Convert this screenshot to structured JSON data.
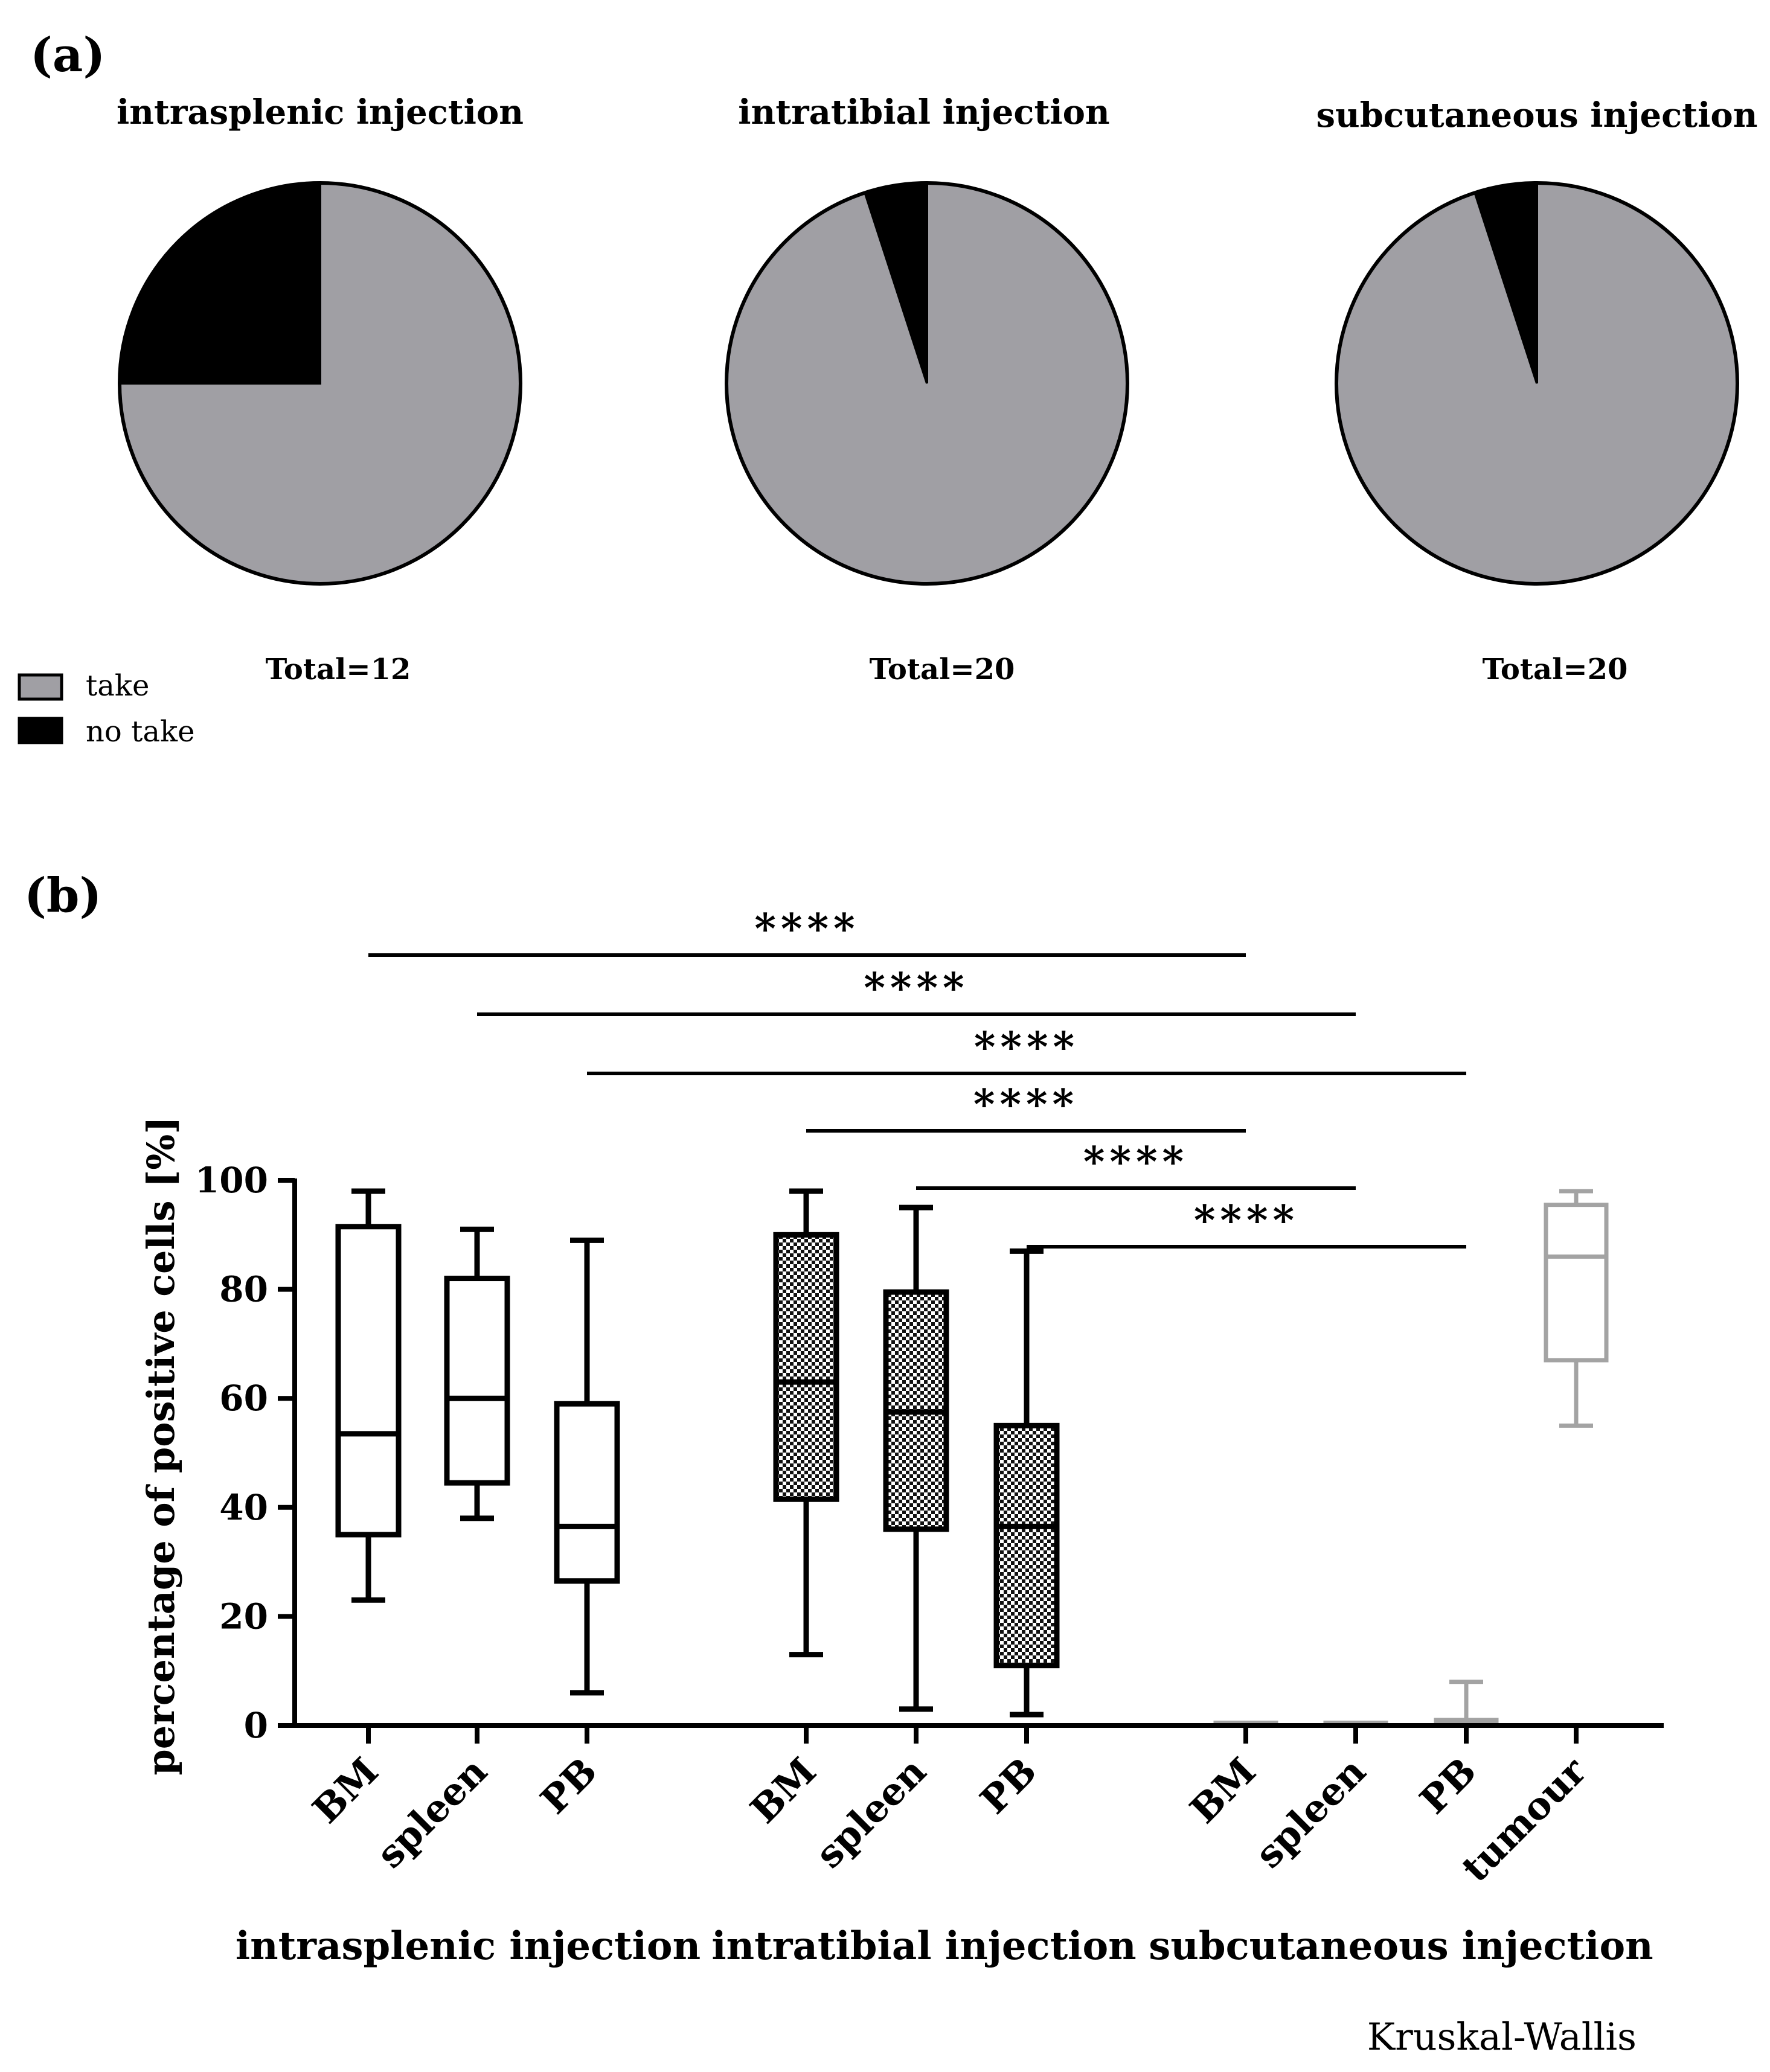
{
  "chart_data": [
    {
      "panel_label": "(a)",
      "type": "pie",
      "legend": [
        {
          "label": "take",
          "color": "#a09fa4"
        },
        {
          "label": "no take",
          "color": "#000000"
        }
      ],
      "charts": [
        {
          "title": "intrasplenic injection",
          "total_label": "Total=12",
          "total": 12,
          "take": 9,
          "no_take": 3
        },
        {
          "title": "intratibial injection",
          "total_label": "Total=20",
          "total": 20,
          "take": 19,
          "no_take": 1
        },
        {
          "title": "subcutaneous injection",
          "total_label": "Total=20",
          "total": 20,
          "take": 19,
          "no_take": 1
        }
      ]
    },
    {
      "panel_label": "(b)",
      "type": "box",
      "ylabel": "percentage of positive cells [%]",
      "ylim": [
        0,
        100
      ],
      "yticks": [
        0,
        20,
        40,
        60,
        80,
        100
      ],
      "groups": [
        {
          "label": "intrasplenic injection",
          "categories": [
            "BM",
            "spleen",
            "PB"
          ]
        },
        {
          "label": "intratibial injection",
          "categories": [
            "BM",
            "spleen",
            "PB"
          ]
        },
        {
          "label": "subcutaneous injection",
          "categories": [
            "BM",
            "spleen",
            "PB",
            "tumour"
          ]
        }
      ],
      "boxes": [
        {
          "group": 0,
          "category": "BM",
          "min": 23,
          "q1": 35,
          "median": 53.5,
          "q3": 91.5,
          "max": 98,
          "style": "open"
        },
        {
          "group": 0,
          "category": "spleen",
          "min": 38,
          "q1": 44.5,
          "median": 60,
          "q3": 82,
          "max": 91,
          "style": "open"
        },
        {
          "group": 0,
          "category": "PB",
          "min": 6,
          "q1": 26.5,
          "median": 36.5,
          "q3": 59,
          "max": 89,
          "style": "open"
        },
        {
          "group": 1,
          "category": "BM",
          "min": 13,
          "q1": 41.5,
          "median": 63,
          "q3": 90,
          "max": 98,
          "style": "checkered"
        },
        {
          "group": 1,
          "category": "spleen",
          "min": 3,
          "q1": 36,
          "median": 57.5,
          "q3": 79.5,
          "max": 95,
          "style": "checkered"
        },
        {
          "group": 1,
          "category": "PB",
          "min": 2,
          "q1": 11,
          "median": 36.5,
          "q3": 55,
          "max": 87,
          "style": "checkered"
        },
        {
          "group": 2,
          "category": "BM",
          "min": 0.5,
          "q1": 0.5,
          "median": 0.5,
          "q3": 0.5,
          "max": 0.5,
          "style": "gray"
        },
        {
          "group": 2,
          "category": "spleen",
          "min": 0.5,
          "q1": 0.5,
          "median": 0.5,
          "q3": 0.5,
          "max": 0.5,
          "style": "gray"
        },
        {
          "group": 2,
          "category": "PB",
          "min": 0.5,
          "q1": 0.5,
          "median": 0.5,
          "q3": 1,
          "max": 8,
          "style": "gray"
        },
        {
          "group": 2,
          "category": "tumour",
          "min": 55,
          "q1": 67,
          "median": 86,
          "q3": 95.5,
          "max": 98,
          "style": "gray"
        }
      ],
      "significance": [
        {
          "from": 0,
          "to": 6,
          "label": "****"
        },
        {
          "from": 1,
          "to": 7,
          "label": "****"
        },
        {
          "from": 2,
          "to": 8,
          "label": "****"
        },
        {
          "from": 3,
          "to": 6,
          "label": "****"
        },
        {
          "from": 4,
          "to": 7,
          "label": "****"
        },
        {
          "from": 5,
          "to": 8,
          "label": "****"
        }
      ],
      "test_note": "Kruskal-Wallis"
    }
  ]
}
